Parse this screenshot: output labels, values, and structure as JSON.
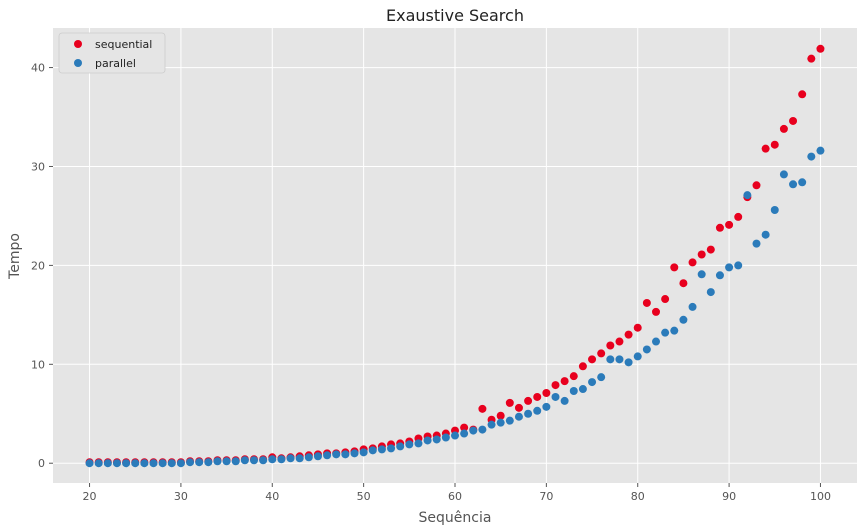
{
  "chart_data": {
    "type": "scatter",
    "title": "Exaustive Search",
    "xlabel": "Sequência",
    "ylabel": "Tempo",
    "xlim": [
      16,
      104
    ],
    "ylim": [
      -2,
      44
    ],
    "xticks": [
      20,
      30,
      40,
      50,
      60,
      70,
      80,
      90,
      100
    ],
    "yticks": [
      0,
      10,
      20,
      30,
      40
    ],
    "grid": true,
    "legend_position": "top-left",
    "background": "#e5e5e5",
    "x": [
      20,
      21,
      22,
      23,
      24,
      25,
      26,
      27,
      28,
      29,
      30,
      31,
      32,
      33,
      34,
      35,
      36,
      37,
      38,
      39,
      40,
      41,
      42,
      43,
      44,
      45,
      46,
      47,
      48,
      49,
      50,
      51,
      52,
      53,
      54,
      55,
      56,
      57,
      58,
      59,
      60,
      61,
      62,
      63,
      64,
      65,
      66,
      67,
      68,
      69,
      70,
      71,
      72,
      73,
      74,
      75,
      76,
      77,
      78,
      79,
      80,
      81,
      82,
      83,
      84,
      85,
      86,
      87,
      88,
      89,
      90,
      91,
      92,
      93,
      94,
      95,
      96,
      97,
      98,
      99,
      100
    ],
    "series": [
      {
        "name": "sequential",
        "color": "#e8001e",
        "values": [
          0.1,
          0.1,
          0.1,
          0.1,
          0.1,
          0.1,
          0.1,
          0.1,
          0.1,
          0.1,
          0.1,
          0.2,
          0.2,
          0.2,
          0.3,
          0.3,
          0.3,
          0.4,
          0.4,
          0.4,
          0.6,
          0.5,
          0.6,
          0.7,
          0.8,
          0.9,
          1.0,
          1.0,
          1.1,
          1.2,
          1.4,
          1.5,
          1.7,
          1.9,
          2.0,
          2.2,
          2.5,
          2.7,
          2.8,
          3.0,
          3.3,
          3.6,
          3.4,
          5.5,
          4.4,
          4.8,
          6.1,
          5.6,
          6.3,
          6.7,
          7.1,
          7.9,
          8.3,
          8.8,
          9.8,
          10.5,
          11.1,
          11.9,
          12.3,
          13.0,
          13.7,
          16.2,
          15.3,
          16.6,
          19.8,
          18.2,
          20.3,
          21.1,
          21.6,
          23.8,
          24.1,
          24.9,
          26.9,
          28.1,
          31.8,
          32.2,
          33.8,
          34.6,
          37.3,
          40.9,
          41.9
        ]
      },
      {
        "name": "parallel",
        "color": "#2b7bba",
        "values": [
          0.0,
          0.0,
          0.0,
          0.0,
          0.0,
          0.0,
          0.0,
          0.0,
          0.0,
          0.0,
          0.0,
          0.1,
          0.1,
          0.1,
          0.2,
          0.2,
          0.2,
          0.3,
          0.3,
          0.3,
          0.4,
          0.4,
          0.5,
          0.5,
          0.6,
          0.7,
          0.8,
          0.9,
          0.9,
          1.0,
          1.1,
          1.3,
          1.4,
          1.5,
          1.7,
          1.9,
          2.0,
          2.3,
          2.4,
          2.6,
          2.8,
          3.0,
          3.3,
          3.4,
          3.9,
          4.1,
          4.3,
          4.7,
          5.0,
          5.3,
          5.7,
          6.7,
          6.3,
          7.3,
          7.5,
          8.2,
          8.7,
          10.5,
          10.5,
          10.2,
          10.8,
          11.5,
          12.3,
          13.2,
          13.4,
          14.5,
          15.8,
          19.1,
          17.3,
          19.0,
          19.8,
          20.0,
          27.1,
          22.2,
          23.1,
          25.6,
          29.2,
          28.2,
          28.4,
          31.0,
          31.6
        ]
      }
    ]
  }
}
